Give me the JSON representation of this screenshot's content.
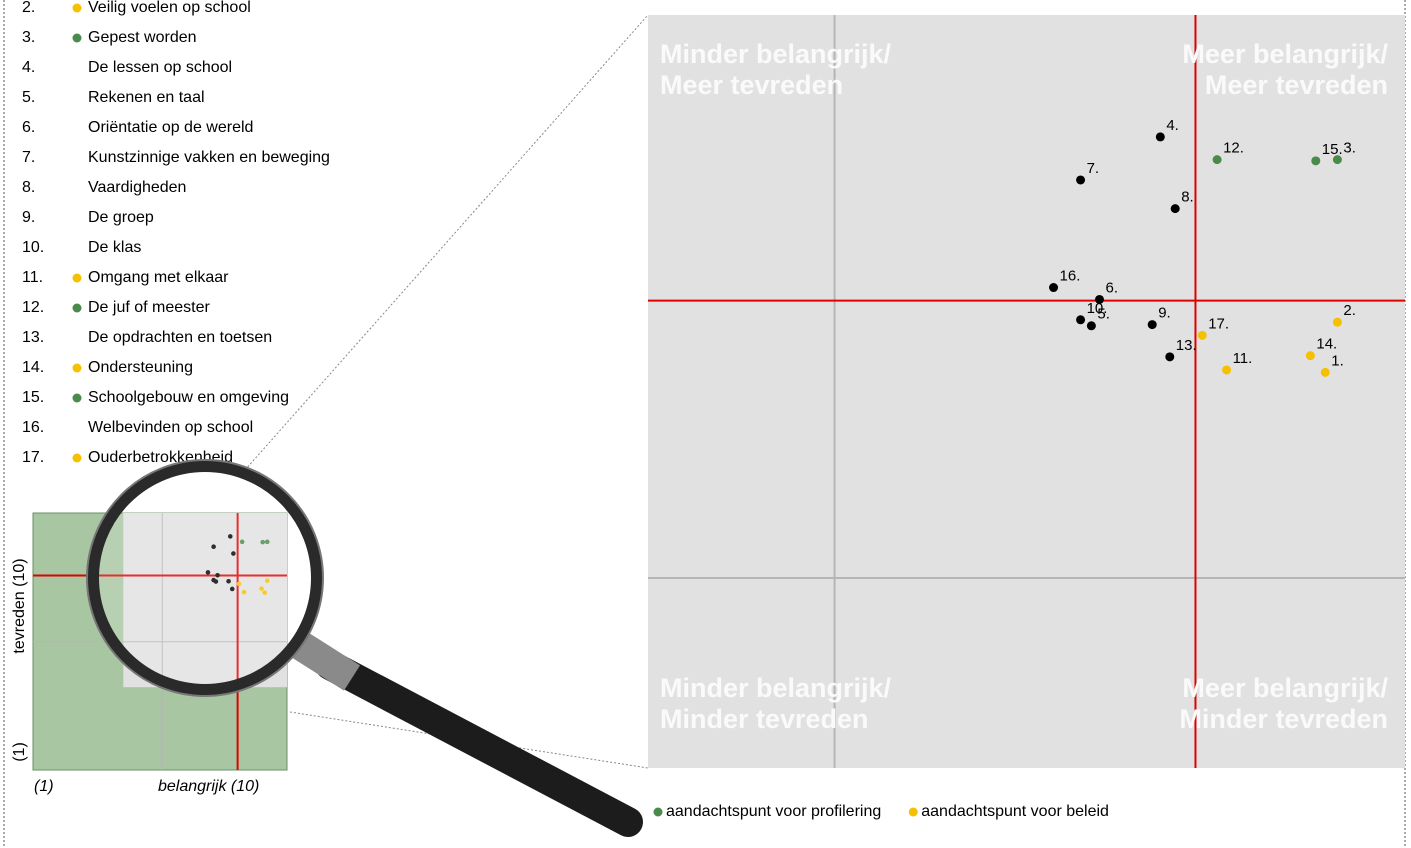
{
  "list": [
    {
      "number": "2.",
      "marker_color": "#f5c000",
      "text": "Veilig voelen op school"
    },
    {
      "number": "3.",
      "marker_color": "#4a8a4a",
      "text": "Gepest worden"
    },
    {
      "number": "4.",
      "text": "De lessen op school"
    },
    {
      "number": "5.",
      "text": "Rekenen en taal"
    },
    {
      "number": "6.",
      "text": "Oriëntatie op de wereld"
    },
    {
      "number": "7.",
      "text": "Kunstzinnige vakken en beweging"
    },
    {
      "number": "8.",
      "text": "Vaardigheden"
    },
    {
      "number": "9.",
      "text": "De groep"
    },
    {
      "number": "10.",
      "text": "De klas"
    },
    {
      "number": "11.",
      "marker_color": "#f5c000",
      "text": "Omgang met elkaar"
    },
    {
      "number": "12.",
      "marker_color": "#4a8a4a",
      "text": "De juf of meester"
    },
    {
      "number": "13.",
      "text": "De opdrachten en toetsen"
    },
    {
      "number": "14.",
      "marker_color": "#f5c000",
      "text": "Ondersteuning"
    },
    {
      "number": "15.",
      "marker_color": "#4a8a4a",
      "text": "Schoolgebouw en omgeving"
    },
    {
      "number": "16.",
      "text": "Welbevinden op school"
    },
    {
      "number": "17.",
      "marker_color": "#f5c000",
      "text": "Ouderbetrokkenheid"
    }
  ],
  "chart_data": {
    "type": "scatter",
    "x_label": "belangrijk (10)",
    "x_min_label": "(1)",
    "y_label": "tevreden (10)",
    "y_min_label": "(1)",
    "overview_lim": [
      1,
      10
    ],
    "xlim": [
      4.2,
      9.8
    ],
    "ylim": [
      3.9,
      10.2
    ],
    "ref_x": 8.25,
    "ref_y": 7.81,
    "grid_x": 5.58,
    "grid_y": 5.49,
    "quadrants": [
      {
        "corner": "top-left",
        "lines": [
          "Minder belangrijk/",
          "Meer tevreden"
        ]
      },
      {
        "corner": "top-right",
        "lines": [
          "Meer belangrijk/",
          "Meer tevreden"
        ]
      },
      {
        "corner": "bottom-left",
        "lines": [
          "Minder belangrijk/",
          "Minder tevreden"
        ]
      },
      {
        "corner": "bottom-right",
        "lines": [
          "Meer belangrijk/",
          "Minder tevreden"
        ]
      }
    ],
    "series": [
      {
        "color": "#000000",
        "labels": [
          "4.",
          "7.",
          "8.",
          "16.",
          "6.",
          "10.",
          "5.",
          "9.",
          "13."
        ],
        "x": [
          7.99,
          7.4,
          8.1,
          7.2,
          7.54,
          7.4,
          7.48,
          7.93,
          8.06
        ],
        "values": [
          9.18,
          8.82,
          8.58,
          7.92,
          7.82,
          7.65,
          7.6,
          7.61,
          7.34
        ]
      },
      {
        "name": "aandachtspunt voor profilering",
        "color": "#4a8a4a",
        "labels": [
          "12.",
          "15.",
          "3."
        ],
        "x": [
          8.41,
          9.14,
          9.3
        ],
        "values": [
          8.99,
          8.98,
          8.99
        ]
      },
      {
        "name": "aandachtspunt voor beleid",
        "color": "#f5c000",
        "labels": [
          "17.",
          "2.",
          "11.",
          "14.",
          "1."
        ],
        "x": [
          8.3,
          9.3,
          8.48,
          9.1,
          9.21
        ],
        "values": [
          7.52,
          7.63,
          7.23,
          7.35,
          7.21
        ]
      }
    ]
  }
}
